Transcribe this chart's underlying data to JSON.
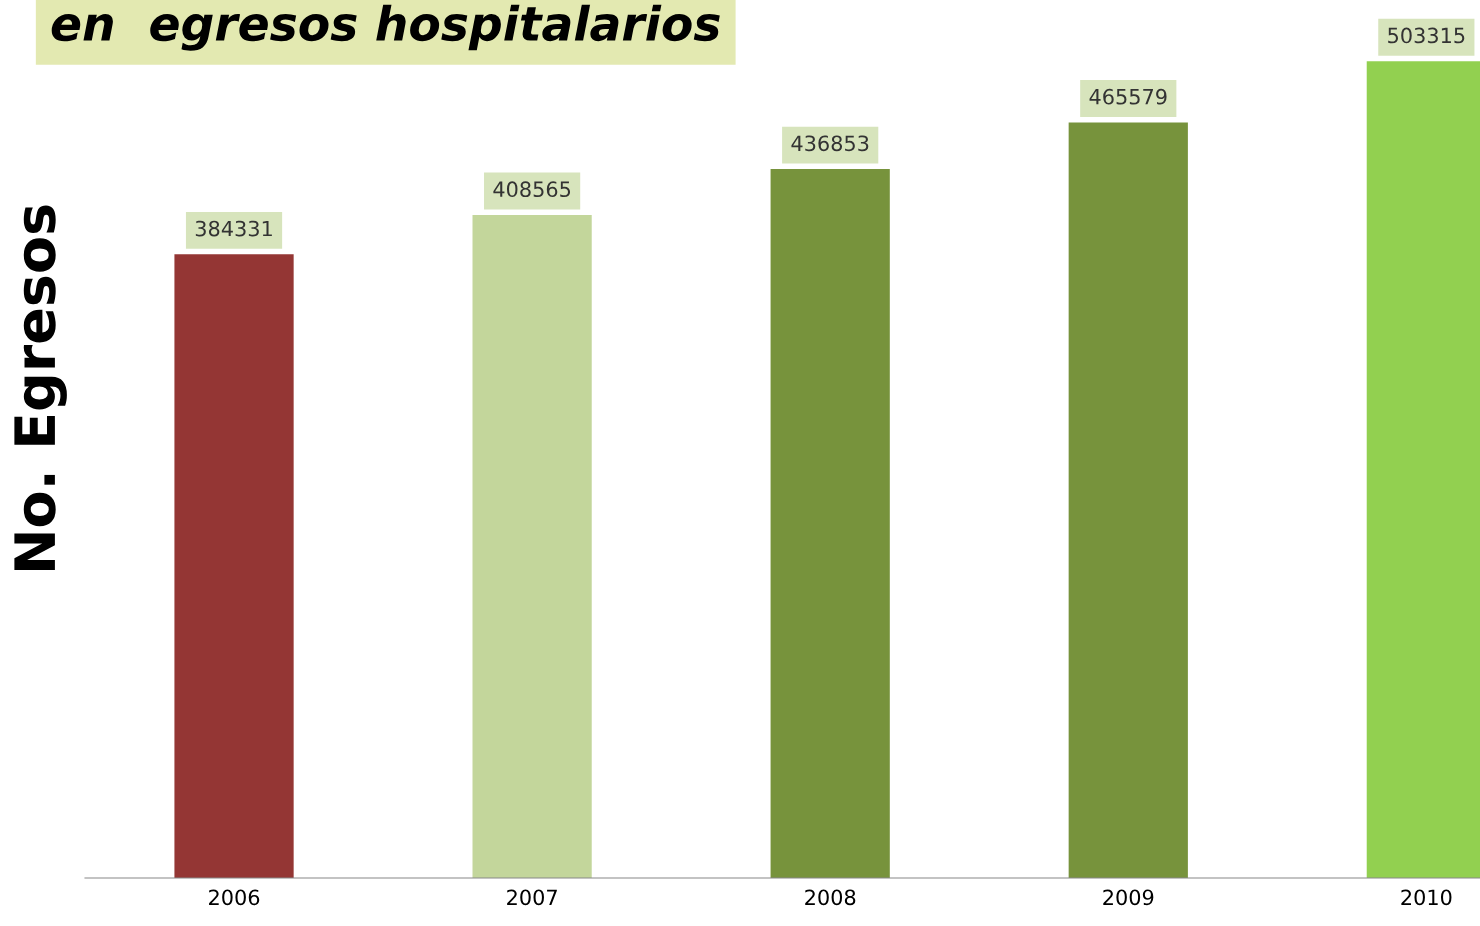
{
  "chart_data": {
    "type": "bar",
    "title": "en  egresos hospitalarios",
    "ylabel": "No. Egresos",
    "categories": [
      "2006",
      "2007",
      "2008",
      "2009",
      "2010"
    ],
    "values": [
      384331,
      408565,
      436853,
      465579,
      503315
    ],
    "colors": [
      "#943634",
      "#c3d69b",
      "#77933c",
      "#77933c",
      "#92d050"
    ],
    "data_labels": true,
    "grid": false,
    "legend": false,
    "tick_labels": "x"
  }
}
